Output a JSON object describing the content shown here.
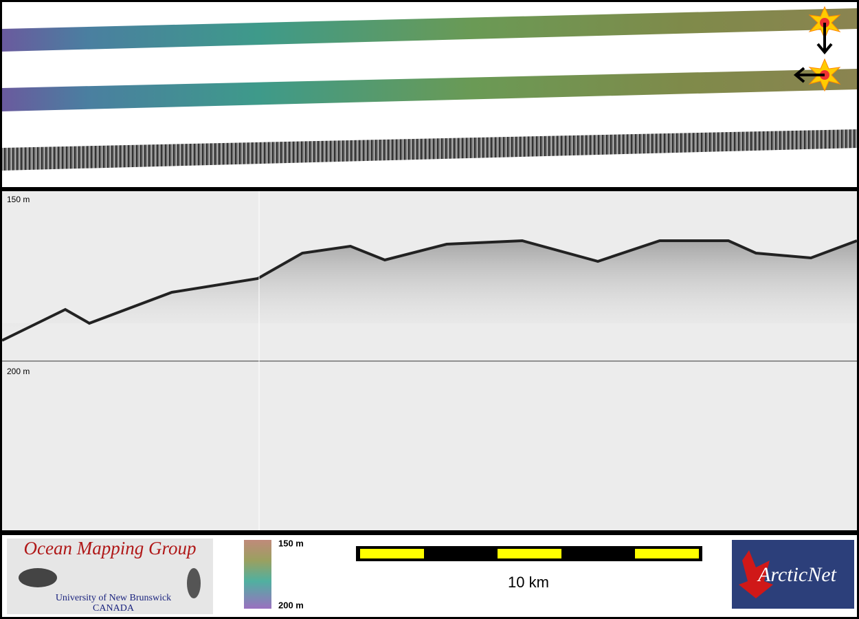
{
  "echogram": {
    "depth_labels": [
      "150 m",
      "200 m"
    ]
  },
  "footer": {
    "logo": {
      "title": "Ocean Mapping Group",
      "institution": "University of New Brunswick",
      "country": "CANADA"
    },
    "colorbar": {
      "top_label": "150 m",
      "bottom_label": "200 m"
    },
    "scale_bar": {
      "label": "10 km"
    },
    "partner_logo": {
      "name": "ArcticNet"
    }
  }
}
